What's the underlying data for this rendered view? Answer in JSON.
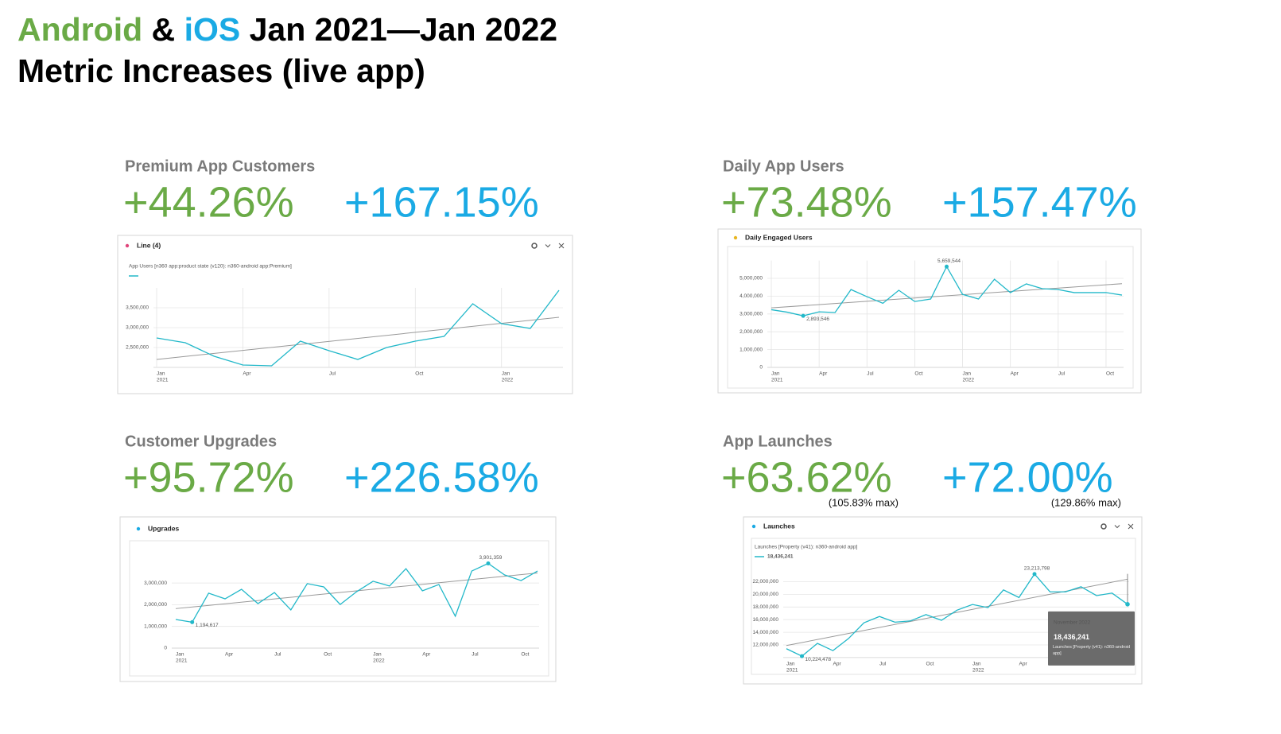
{
  "header": {
    "android": "Android",
    "amp": "&",
    "ios": "iOS",
    "range": "Jan 2021—Jan 2022",
    "subtitle": "Metric Increases (live app)"
  },
  "panels": [
    {
      "heading": "Premium App Customers",
      "android": "+44.26%",
      "ios": "+167.15%"
    },
    {
      "heading": "Daily App Users",
      "android": "+73.48%",
      "ios": "+157.47%"
    },
    {
      "heading": "Customer Upgrades",
      "android": "+95.72%",
      "ios": "+226.58%"
    },
    {
      "heading": "App Launches",
      "android": "+63.62%",
      "ios": "+72.00%",
      "android_note": "(105.83% max)",
      "ios_note": "(129.86% max)"
    }
  ],
  "chart_data": [
    {
      "type": "line",
      "title": "Line (4)",
      "subtitle": "App Users [n360 app:product state (v120): n360-android app:Premium]",
      "categories": [
        "Jan",
        null,
        null,
        "Apr",
        null,
        null,
        "Jul",
        null,
        null,
        "Oct",
        null,
        null,
        "Jan",
        null,
        null
      ],
      "years": [
        "2021",
        null,
        null,
        null,
        null,
        null,
        null,
        null,
        null,
        null,
        null,
        null,
        "2022",
        null,
        null
      ],
      "values": [
        2740000,
        2620000,
        2280000,
        2060000,
        2040000,
        2660000,
        2420000,
        2200000,
        2500000,
        2660000,
        2780000,
        3600000,
        3100000,
        2980000,
        3940000
      ],
      "color": "#22b8c9",
      "trend": {
        "color": "#999999",
        "values": [
          2200000,
          3260000
        ]
      },
      "ylim": [
        2000000,
        4000000
      ],
      "yticks": [
        {
          "value": 2500000,
          "label": "2,500,000"
        },
        {
          "value": 3000000,
          "label": "3,000,000"
        },
        {
          "value": 3500000,
          "label": "3,500,000"
        }
      ],
      "grid": true
    },
    {
      "type": "line",
      "title": "Daily Engaged Users",
      "categories": [
        "Jan",
        null,
        null,
        "Apr",
        null,
        null,
        "Jul",
        null,
        null,
        "Oct",
        null,
        null,
        "Jan",
        null,
        null,
        "Apr",
        null,
        null,
        "Jul",
        null,
        null,
        "Oct",
        null
      ],
      "years": [
        "2021",
        null,
        null,
        null,
        null,
        null,
        null,
        null,
        null,
        null,
        null,
        null,
        "2022",
        null,
        null,
        null,
        null,
        null,
        null,
        null,
        null,
        null,
        null
      ],
      "values": [
        3240000,
        3100000,
        2893546,
        3120000,
        3080000,
        4370000,
        3970000,
        3600000,
        4330000,
        3700000,
        3840000,
        5659544,
        4100000,
        3840000,
        4950000,
        4200000,
        4690000,
        4420000,
        4370000,
        4200000,
        4200000,
        4200000,
        4060000
      ],
      "value_labels": [
        null,
        null,
        "2,893,546",
        null,
        null,
        null,
        null,
        null,
        null,
        null,
        null,
        "5,659,544",
        null,
        null,
        null,
        null,
        null,
        null,
        null,
        null,
        null,
        null,
        null
      ],
      "color": "#22b8c9",
      "trend": {
        "color": "#999999",
        "values": [
          3340000,
          4700000
        ]
      },
      "ylim": [
        0,
        6000000
      ],
      "yticks": [
        0,
        {
          "value": 1000000,
          "label": "1,000,000"
        },
        {
          "value": 2000000,
          "label": "2,000,000"
        },
        {
          "value": 3000000,
          "label": "3,000,000"
        },
        {
          "value": 4000000,
          "label": "4,000,000"
        },
        {
          "value": 5000000,
          "label": "5,000,000"
        }
      ],
      "grid": true
    },
    {
      "type": "line",
      "title": "Upgrades",
      "categories": [
        "Jan",
        null,
        null,
        "Apr",
        null,
        null,
        "Jul",
        null,
        null,
        "Oct",
        null,
        null,
        "Jan",
        null,
        null,
        "Apr",
        null,
        null,
        "Jul",
        null,
        null,
        "Oct",
        null
      ],
      "years": [
        "2021",
        null,
        null,
        null,
        null,
        null,
        null,
        null,
        null,
        null,
        null,
        null,
        "2022",
        null,
        null,
        null,
        null,
        null,
        null,
        null,
        null,
        null,
        null
      ],
      "values": [
        1320000,
        1194617,
        2530000,
        2270000,
        2710000,
        2050000,
        2560000,
        1760000,
        2970000,
        2820000,
        2010000,
        2600000,
        3080000,
        2860000,
        3660000,
        2640000,
        2930000,
        1470000,
        3550000,
        3901359,
        3370000,
        3110000,
        3550000
      ],
      "value_labels": [
        null,
        "1,194,617",
        null,
        null,
        null,
        null,
        null,
        null,
        null,
        null,
        null,
        null,
        null,
        null,
        null,
        null,
        null,
        null,
        null,
        "3,901,359",
        null,
        null,
        null
      ],
      "color": "#22b8c9",
      "trend": {
        "color": "#999999",
        "values": [
          1820000,
          3460000
        ]
      },
      "ylim": [
        0,
        4000000
      ],
      "yticks": [
        0,
        {
          "value": 1000000,
          "label": "1,000,000"
        },
        {
          "value": 2000000,
          "label": "2,000,000"
        },
        {
          "value": 3000000,
          "label": "3,000,000"
        }
      ],
      "grid": true
    },
    {
      "type": "line",
      "title": "Launches",
      "subtitle": "Launches [Property (v41): n360-android app]",
      "legend_value": "18,436,241",
      "categories": [
        "Jan",
        null,
        null,
        "Apr",
        null,
        null,
        "Jul",
        null,
        null,
        "Oct",
        null,
        null,
        "Jan",
        null,
        null,
        "Apr",
        null,
        null,
        null,
        null,
        null,
        null,
        null
      ],
      "years": [
        "2021",
        null,
        null,
        null,
        null,
        null,
        null,
        null,
        null,
        null,
        null,
        null,
        "2022",
        null,
        null,
        null,
        null,
        null,
        null,
        null,
        null,
        null,
        null
      ],
      "values": [
        11400000,
        10224478,
        12250000,
        11100000,
        13000000,
        15500000,
        16500000,
        15600000,
        15800000,
        16800000,
        15900000,
        17500000,
        18400000,
        17900000,
        20700000,
        19500000,
        23213798,
        20400000,
        20400000,
        21200000,
        19800000,
        20200000,
        18436241
      ],
      "value_labels": [
        null,
        "10,224,478",
        null,
        null,
        null,
        null,
        null,
        null,
        null,
        null,
        null,
        null,
        null,
        null,
        null,
        null,
        "23,213,798",
        null,
        null,
        null,
        null,
        null,
        null
      ],
      "color": "#22b8c9",
      "trend": {
        "color": "#999999",
        "values": [
          11900000,
          22400000
        ]
      },
      "ylim": [
        10000000,
        24000000
      ],
      "yticks": [
        {
          "value": 12000000,
          "label": "12,000,000"
        },
        {
          "value": 14000000,
          "label": "14,000,000"
        },
        {
          "value": 16000000,
          "label": "16,000,000"
        },
        {
          "value": 18000000,
          "label": "18,000,000"
        },
        {
          "value": 20000000,
          "label": "20,000,000"
        },
        {
          "value": 22000000,
          "label": "22,000,000"
        }
      ],
      "tooltip": {
        "title": "November 2022",
        "value": "18,436,241",
        "series": "Launches [Property (v41): n360-android app]"
      },
      "grid": true
    }
  ]
}
